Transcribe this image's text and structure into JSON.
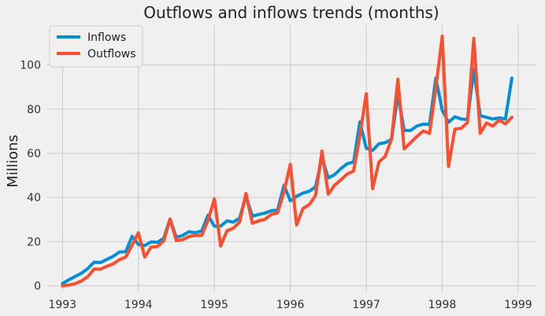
{
  "chart_data": {
    "type": "line",
    "title": "Outflows and inflows trends (months)",
    "xlabel": "",
    "ylabel": "Millions",
    "xlim": [
      1992.8,
      1999.25
    ],
    "ylim": [
      -3,
      118
    ],
    "x_ticks": [
      1993,
      1994,
      1995,
      1996,
      1997,
      1998,
      1999
    ],
    "y_ticks": [
      0,
      20,
      40,
      60,
      80,
      100
    ],
    "grid": true,
    "legend_position": "top-left",
    "x_start": 1993.0,
    "x_step": 0.0833333,
    "series": [
      {
        "name": "Inflows",
        "color": "#008fd5",
        "values": [
          1.0,
          2.7,
          4.2,
          5.7,
          7.8,
          10.7,
          10.5,
          11.9,
          13.3,
          15.3,
          15.4,
          22.4,
          18.7,
          18.2,
          19.9,
          19.7,
          21.5,
          30.2,
          21.9,
          22.8,
          24.5,
          24.0,
          24.8,
          32.0,
          27.0,
          27.0,
          29.4,
          28.8,
          30.7,
          40.6,
          31.5,
          32.3,
          32.9,
          34.0,
          34.3,
          45.5,
          38.5,
          40.5,
          42.0,
          42.8,
          44.8,
          58.0,
          48.8,
          50.3,
          53.0,
          55.3,
          56.0,
          74.2,
          62.3,
          61.3,
          64.3,
          64.8,
          66.3,
          86.5,
          70.3,
          70.3,
          72.3,
          73.2,
          73.0,
          94.0,
          79.5,
          74.0,
          76.5,
          75.5,
          75.3,
          98.0,
          77.0,
          76.3,
          75.5,
          76.0,
          75.5,
          94.0
        ]
      },
      {
        "name": "Outflows",
        "color": "#fc4f30",
        "values": [
          0.0,
          0.3,
          1.0,
          2.2,
          4.1,
          7.6,
          7.5,
          8.8,
          9.9,
          11.8,
          13.0,
          18.4,
          24.0,
          13.0,
          17.5,
          17.8,
          20.3,
          30.2,
          20.4,
          20.9,
          22.3,
          22.8,
          22.8,
          29.6,
          39.3,
          18.0,
          24.9,
          26.1,
          28.9,
          41.8,
          28.3,
          29.4,
          30.1,
          32.3,
          33.0,
          42.5,
          55.0,
          27.5,
          35.0,
          36.7,
          40.9,
          61.0,
          41.5,
          45.5,
          48.0,
          50.6,
          52.0,
          68.0,
          87.0,
          44.0,
          56.0,
          58.6,
          66.5,
          93.5,
          62.0,
          64.8,
          67.6,
          70.1,
          69.0,
          89.5,
          113.0,
          54.0,
          70.9,
          71.3,
          73.9,
          112.0,
          69.0,
          73.7,
          72.3,
          75.0,
          73.3,
          76.3
        ]
      }
    ]
  }
}
